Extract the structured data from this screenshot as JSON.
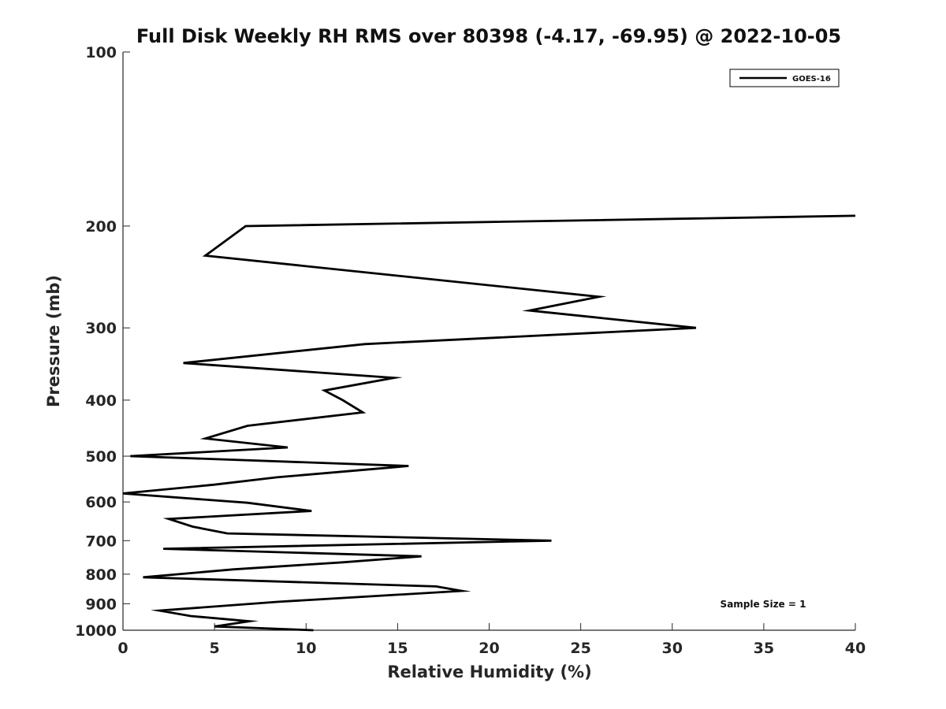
{
  "chart_data": {
    "type": "line",
    "title": "Full Disk Weekly RH RMS over 80398 (-4.17, -69.95) @ 2022-10-05",
    "xlabel": "Relative Humidity (%)",
    "ylabel": "Pressure (mb)",
    "xlim": [
      0,
      40
    ],
    "ylim": [
      100,
      1000
    ],
    "yscale": "log",
    "y_reversed": true,
    "x_ticks": [
      0,
      5,
      10,
      15,
      20,
      25,
      30,
      35,
      40
    ],
    "y_ticks": [
      100,
      200,
      300,
      400,
      500,
      600,
      700,
      800,
      900,
      1000
    ],
    "grid": false,
    "legend_position": "top-right",
    "series": [
      {
        "name": "GOES-16",
        "color": "#000000",
        "points": [
          {
            "x": 40,
            "y": 192
          },
          {
            "x": 6.7,
            "y": 200
          },
          {
            "x": 4.5,
            "y": 225
          },
          {
            "x": 26,
            "y": 265
          },
          {
            "x": 22.2,
            "y": 280
          },
          {
            "x": 31.3,
            "y": 300
          },
          {
            "x": 13.2,
            "y": 320
          },
          {
            "x": 3.3,
            "y": 345
          },
          {
            "x": 14.8,
            "y": 366
          },
          {
            "x": 11,
            "y": 385
          },
          {
            "x": 12,
            "y": 400
          },
          {
            "x": 13.1,
            "y": 420
          },
          {
            "x": 6.8,
            "y": 443
          },
          {
            "x": 4.5,
            "y": 466
          },
          {
            "x": 9,
            "y": 483
          },
          {
            "x": 0.4,
            "y": 500
          },
          {
            "x": 15.6,
            "y": 520
          },
          {
            "x": 8.4,
            "y": 544
          },
          {
            "x": 5,
            "y": 560
          },
          {
            "x": 0,
            "y": 580
          },
          {
            "x": 6.8,
            "y": 602
          },
          {
            "x": 10.3,
            "y": 622
          },
          {
            "x": 2.5,
            "y": 642
          },
          {
            "x": 3.8,
            "y": 662
          },
          {
            "x": 5.7,
            "y": 680
          },
          {
            "x": 23.4,
            "y": 700
          },
          {
            "x": 2.2,
            "y": 723
          },
          {
            "x": 16.3,
            "y": 745
          },
          {
            "x": 12,
            "y": 763
          },
          {
            "x": 6,
            "y": 785
          },
          {
            "x": 1.1,
            "y": 810
          },
          {
            "x": 17.1,
            "y": 840
          },
          {
            "x": 18.5,
            "y": 855
          },
          {
            "x": 8.5,
            "y": 893
          },
          {
            "x": 2,
            "y": 925
          },
          {
            "x": 3.7,
            "y": 945
          },
          {
            "x": 6.9,
            "y": 965
          },
          {
            "x": 5,
            "y": 985
          },
          {
            "x": 10.4,
            "y": 1000
          }
        ]
      }
    ],
    "annotations": [
      {
        "text": "Sample Size = 1",
        "position": "bottom-right"
      }
    ]
  }
}
